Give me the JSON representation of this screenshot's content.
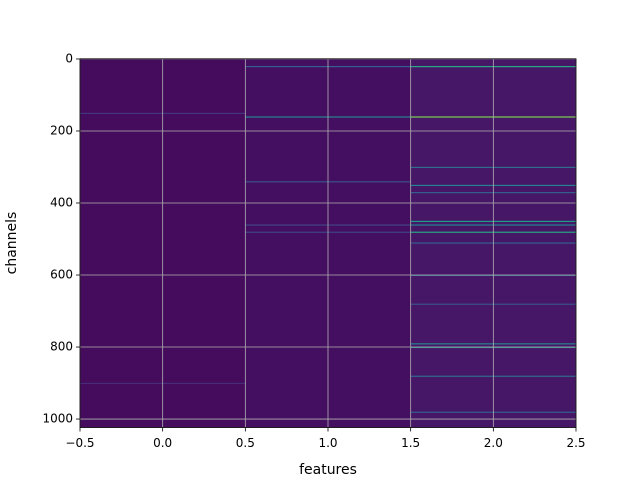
{
  "chart_data": {
    "type": "heatmap",
    "xlabel": "features",
    "ylabel": "channels",
    "xlim": [
      -0.5,
      2.5
    ],
    "ylim": [
      1023.5,
      -0.5
    ],
    "xticks": [
      {
        "value": -0.5,
        "label": "−0.5"
      },
      {
        "value": 0,
        "label": "0.0"
      },
      {
        "value": 0.5,
        "label": "0.5"
      },
      {
        "value": 1,
        "label": "1.0"
      },
      {
        "value": 1.5,
        "label": "1.5"
      },
      {
        "value": 2,
        "label": "2.0"
      },
      {
        "value": 2.5,
        "label": "2.5"
      }
    ],
    "yticks": [
      0,
      200,
      400,
      600,
      800,
      1000
    ],
    "grid": true,
    "colormap": "viridis",
    "clim": [
      0,
      1
    ],
    "columns": [
      0,
      1,
      2
    ],
    "base": [
      0.03,
      0.04,
      0.06
    ],
    "stripes": {
      "x": [
        0,
        0,
        1,
        1,
        1,
        1,
        1,
        2,
        2,
        2,
        2,
        2,
        2,
        2,
        2,
        2,
        2,
        2,
        2,
        2,
        2,
        2
      ],
      "y": [
        150,
        900,
        20,
        160,
        340,
        460,
        480,
        20,
        160,
        300,
        350,
        370,
        450,
        460,
        480,
        510,
        600,
        680,
        790,
        800,
        880,
        980
      ],
      "values": [
        0.15,
        0.12,
        0.3,
        0.45,
        0.25,
        0.2,
        0.2,
        0.6,
        0.8,
        0.35,
        0.45,
        0.3,
        0.55,
        0.45,
        0.6,
        0.3,
        0.35,
        0.25,
        0.45,
        0.5,
        0.35,
        0.3
      ]
    }
  }
}
